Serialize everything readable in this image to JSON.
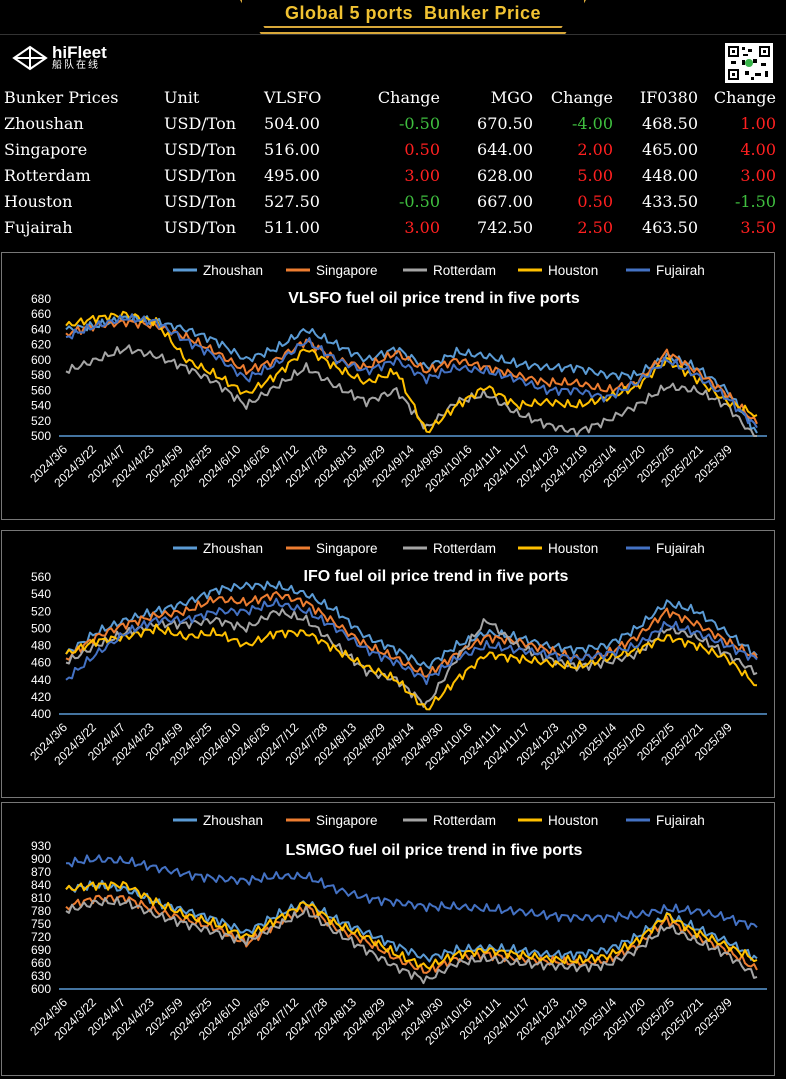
{
  "banner": {
    "title": "Global 5 ports  Bunker Price"
  },
  "logo": {
    "name": "hiFleet",
    "subtitle": "船队在线"
  },
  "table": {
    "headers": [
      "Bunker Prices",
      "Unit",
      "VLSFO",
      "Change",
      "MGO",
      "Change",
      "IF0380",
      "Change"
    ],
    "rows": [
      {
        "port": "Zhoushan",
        "unit": "USD/Ton",
        "vlsfo": "504.00",
        "vlsfo_change": "-0.50",
        "mgo": "670.50",
        "mgo_change": "-4.00",
        "ifo": "468.50",
        "ifo_change": "1.00"
      },
      {
        "port": "Singapore",
        "unit": "USD/Ton",
        "vlsfo": "516.00",
        "vlsfo_change": "0.50",
        "mgo": "644.00",
        "mgo_change": "2.00",
        "ifo": "465.00",
        "ifo_change": "4.00"
      },
      {
        "port": "Rotterdam",
        "unit": "USD/Ton",
        "vlsfo": "495.00",
        "vlsfo_change": "3.00",
        "mgo": "628.00",
        "mgo_change": "5.00",
        "ifo": "448.00",
        "ifo_change": "3.00"
      },
      {
        "port": "Houston",
        "unit": "USD/Ton",
        "vlsfo": "527.50",
        "vlsfo_change": "-0.50",
        "mgo": "667.00",
        "mgo_change": "0.50",
        "ifo": "433.50",
        "ifo_change": "-1.50"
      },
      {
        "port": "Fujairah",
        "unit": "USD/Ton",
        "vlsfo": "511.00",
        "vlsfo_change": "3.00",
        "mgo": "742.50",
        "mgo_change": "2.50",
        "ifo": "463.50",
        "ifo_change": "3.50"
      }
    ]
  },
  "colors": {
    "Zhoushan": "#5b9bd5",
    "Singapore": "#ed7d31",
    "Rotterdam": "#a5a5a5",
    "Houston": "#ffc000",
    "Fujairah": "#4472c4",
    "positive_change": "#ff2020",
    "negative_change": "#3fbf3f",
    "banner_accent": "#f1c232"
  },
  "chart_data": [
    {
      "type": "line",
      "title": "VLSFO fuel oil price trend in five ports",
      "legend": [
        "Zhoushan",
        "Singapore",
        "Rotterdam",
        "Houston",
        "Fujairah"
      ],
      "legend_position": "top",
      "ylim": [
        500,
        680
      ],
      "yticks": [
        500,
        520,
        540,
        560,
        580,
        600,
        620,
        640,
        660,
        680
      ],
      "xticks": [
        "2024/3/6",
        "2024/3/22",
        "2024/4/7",
        "2024/4/23",
        "2024/5/9",
        "2024/5/25",
        "2024/6/10",
        "2024/6/26",
        "2024/7/12",
        "2024/7/28",
        "2024/8/13",
        "2024/8/29",
        "2024/9/14",
        "2024/9/30",
        "2024/10/16",
        "2024/11/1",
        "2024/11/17",
        "2024/12/3",
        "2024/12/19",
        "2025/1/4",
        "2025/1/20",
        "2025/2/5",
        "2025/2/21",
        "2025/3/9"
      ],
      "series": [
        {
          "name": "Zhoushan",
          "values": [
            640,
            645,
            655,
            650,
            640,
            625,
            600,
            615,
            640,
            620,
            600,
            615,
            590,
            610,
            605,
            595,
            590,
            590,
            580,
            580,
            605,
            590,
            560,
            504
          ]
        },
        {
          "name": "Singapore",
          "values": [
            635,
            645,
            650,
            645,
            630,
            610,
            585,
            600,
            625,
            600,
            590,
            610,
            585,
            600,
            590,
            580,
            570,
            570,
            560,
            570,
            610,
            585,
            555,
            516
          ]
        },
        {
          "name": "Rotterdam",
          "values": [
            585,
            600,
            615,
            605,
            590,
            570,
            540,
            565,
            590,
            565,
            545,
            560,
            510,
            545,
            555,
            530,
            515,
            505,
            520,
            540,
            565,
            560,
            540,
            495
          ]
        },
        {
          "name": "Houston",
          "values": [
            645,
            655,
            660,
            650,
            600,
            580,
            555,
            580,
            615,
            590,
            570,
            585,
            505,
            540,
            565,
            540,
            545,
            540,
            550,
            565,
            600,
            575,
            545,
            527.5
          ]
        },
        {
          "name": "Fujairah",
          "values": [
            630,
            645,
            655,
            650,
            625,
            605,
            575,
            595,
            625,
            600,
            585,
            600,
            575,
            590,
            585,
            575,
            560,
            560,
            550,
            570,
            600,
            580,
            550,
            511
          ]
        }
      ]
    },
    {
      "type": "line",
      "title": "IFO fuel oil price trend in five ports",
      "legend": [
        "Zhoushan",
        "Singapore",
        "Rotterdam",
        "Houston",
        "Fujairah"
      ],
      "legend_position": "top",
      "ylim": [
        400,
        560
      ],
      "yticks": [
        400,
        420,
        440,
        460,
        480,
        500,
        520,
        540,
        560
      ],
      "xticks": [
        "2024/3/6",
        "2024/3/22",
        "2024/4/7",
        "2024/4/23",
        "2024/5/9",
        "2024/5/25",
        "2024/6/10",
        "2024/6/26",
        "2024/7/12",
        "2024/7/28",
        "2024/8/13",
        "2024/8/29",
        "2024/9/14",
        "2024/9/30",
        "2024/10/16",
        "2024/11/1",
        "2024/11/17",
        "2024/12/3",
        "2024/12/19",
        "2025/1/4",
        "2025/1/20",
        "2025/2/5",
        "2025/2/21",
        "2025/3/9"
      ],
      "series": [
        {
          "name": "Zhoushan",
          "values": [
            470,
            495,
            510,
            520,
            530,
            545,
            550,
            550,
            540,
            520,
            490,
            475,
            455,
            480,
            495,
            490,
            480,
            475,
            480,
            500,
            530,
            520,
            495,
            468.5
          ]
        },
        {
          "name": "Singapore",
          "values": [
            465,
            490,
            505,
            515,
            520,
            535,
            530,
            540,
            530,
            505,
            480,
            465,
            445,
            470,
            490,
            485,
            475,
            465,
            470,
            490,
            520,
            505,
            485,
            465
          ]
        },
        {
          "name": "Rotterdam",
          "values": [
            460,
            480,
            495,
            505,
            505,
            510,
            500,
            520,
            510,
            480,
            450,
            440,
            410,
            465,
            510,
            480,
            465,
            455,
            460,
            470,
            500,
            490,
            470,
            448
          ]
        },
        {
          "name": "Houston",
          "values": [
            470,
            485,
            490,
            500,
            490,
            495,
            480,
            495,
            495,
            475,
            455,
            440,
            405,
            440,
            470,
            465,
            460,
            455,
            465,
            475,
            490,
            480,
            465,
            433.5
          ]
        },
        {
          "name": "Fujairah",
          "values": [
            440,
            470,
            495,
            510,
            510,
            520,
            520,
            530,
            520,
            500,
            475,
            460,
            440,
            465,
            480,
            475,
            470,
            465,
            470,
            480,
            505,
            495,
            480,
            463.5
          ]
        }
      ]
    },
    {
      "type": "line",
      "title": "LSMGO fuel oil price trend in five ports",
      "legend": [
        "Zhoushan",
        "Singapore",
        "Rotterdam",
        "Houston",
        "Fujairah"
      ],
      "legend_position": "top",
      "ylim": [
        600,
        930
      ],
      "yticks": [
        600,
        630,
        660,
        690,
        720,
        750,
        780,
        810,
        840,
        870,
        900,
        930
      ],
      "xticks": [
        "2024/3/6",
        "2024/3/22",
        "2024/4/7",
        "2024/4/23",
        "2024/5/9",
        "2024/5/25",
        "2024/6/10",
        "2024/6/26",
        "2024/7/12",
        "2024/7/28",
        "2024/8/13",
        "2024/8/29",
        "2024/9/14",
        "2024/9/30",
        "2024/10/16",
        "2024/11/1",
        "2024/11/17",
        "2024/12/3",
        "2024/12/19",
        "2025/1/4",
        "2025/1/20",
        "2025/2/5",
        "2025/2/21",
        "2025/3/9"
      ],
      "series": [
        {
          "name": "Zhoushan",
          "values": [
            830,
            840,
            830,
            800,
            780,
            760,
            730,
            770,
            800,
            760,
            730,
            700,
            670,
            690,
            695,
            690,
            680,
            680,
            690,
            720,
            770,
            740,
            710,
            670.5
          ]
        },
        {
          "name": "Singapore",
          "values": [
            790,
            810,
            810,
            780,
            760,
            740,
            705,
            750,
            790,
            740,
            710,
            670,
            640,
            670,
            680,
            670,
            665,
            660,
            665,
            700,
            760,
            720,
            690,
            644
          ]
        },
        {
          "name": "Rotterdam",
          "values": [
            780,
            800,
            800,
            770,
            750,
            730,
            710,
            745,
            780,
            730,
            690,
            650,
            620,
            660,
            670,
            660,
            655,
            650,
            655,
            690,
            745,
            710,
            680,
            628
          ]
        },
        {
          "name": "Houston",
          "values": [
            830,
            840,
            840,
            800,
            770,
            750,
            720,
            760,
            800,
            750,
            720,
            680,
            650,
            680,
            690,
            680,
            670,
            665,
            675,
            710,
            770,
            730,
            700,
            667
          ]
        },
        {
          "name": "Fujairah",
          "values": [
            890,
            900,
            895,
            880,
            865,
            855,
            850,
            860,
            860,
            830,
            810,
            800,
            790,
            790,
            785,
            780,
            770,
            765,
            765,
            770,
            785,
            780,
            765,
            742.5
          ]
        }
      ]
    }
  ]
}
